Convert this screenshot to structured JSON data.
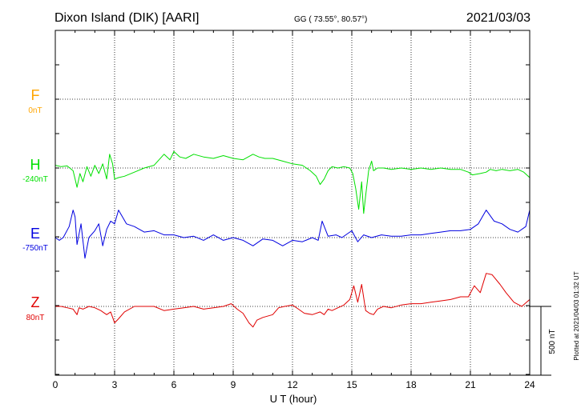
{
  "header": {
    "station": "Dixon Island (DIK)  [AARI]",
    "coords": "GG ( 73.55°,  80.57°)",
    "date": "2021/03/03"
  },
  "side_note": "Plotted at 2021/04/03 01:32 UT",
  "colors": {
    "F": "#ffa500",
    "H": "#00e000",
    "E": "#0000e0",
    "Z": "#e00000",
    "axis": "#000000"
  },
  "chart_data": {
    "type": "line",
    "title": "Dixon Island (DIK)  [AARI]",
    "xlabel": "U T (hour)",
    "xlim": [
      0,
      24
    ],
    "x_ticks": [
      "0",
      "3",
      "6",
      "9",
      "12",
      "15",
      "18",
      "21",
      "24"
    ],
    "grid": true,
    "scale_bar": {
      "label": "500 nT",
      "value_nT": 500
    },
    "series": [
      {
        "name": "F",
        "baseline": "0nT",
        "color": "#ffa500",
        "x": [],
        "y": []
      },
      {
        "name": "H",
        "baseline": "-240nT",
        "color": "#00e000",
        "x": [
          0,
          0.3,
          0.6,
          0.9,
          1.0,
          1.1,
          1.25,
          1.4,
          1.6,
          1.8,
          2.0,
          2.2,
          2.4,
          2.6,
          2.75,
          2.9,
          3.0,
          3.2,
          3.5,
          4.0,
          4.5,
          5.0,
          5.5,
          5.8,
          6.0,
          6.3,
          6.6,
          7.0,
          7.5,
          8.0,
          8.5,
          9.0,
          9.5,
          10.0,
          10.3,
          10.6,
          11.0,
          11.5,
          12.0,
          12.5,
          12.9,
          13.2,
          13.4,
          13.6,
          13.8,
          14.0,
          14.3,
          14.6,
          14.9,
          15.05,
          15.2,
          15.35,
          15.5,
          15.6,
          15.7,
          15.85,
          16.0,
          16.1,
          16.3,
          16.6,
          17.0,
          17.5,
          18.0,
          18.5,
          19.0,
          19.5,
          20.0,
          20.5,
          20.9,
          21.1,
          21.5,
          21.8,
          22.0,
          22.3,
          22.6,
          23.0,
          23.4,
          23.7,
          24.0
        ],
        "y": [
          20,
          10,
          15,
          -20,
          -80,
          -140,
          -40,
          -100,
          10,
          -60,
          20,
          -40,
          30,
          -80,
          100,
          30,
          -80,
          -70,
          -60,
          -30,
          0,
          20,
          100,
          60,
          120,
          80,
          70,
          100,
          80,
          70,
          90,
          70,
          60,
          100,
          80,
          70,
          70,
          50,
          30,
          20,
          -20,
          -60,
          -120,
          -80,
          -20,
          10,
          0,
          10,
          0,
          -40,
          -150,
          -300,
          -100,
          -330,
          -200,
          -20,
          50,
          -20,
          0,
          0,
          -10,
          0,
          -10,
          0,
          -10,
          0,
          -10,
          -10,
          -30,
          -50,
          -40,
          -30,
          -10,
          -20,
          -10,
          -20,
          -10,
          -30,
          -70
        ]
      },
      {
        "name": "E",
        "baseline": "-750nT",
        "color": "#0000e0",
        "x": [
          0,
          0.2,
          0.4,
          0.7,
          0.9,
          1.0,
          1.1,
          1.3,
          1.5,
          1.7,
          2.0,
          2.2,
          2.4,
          2.6,
          2.8,
          3.0,
          3.2,
          3.6,
          4.0,
          4.5,
          5.0,
          5.5,
          6.0,
          6.5,
          7.0,
          7.5,
          8.0,
          8.5,
          9.0,
          9.5,
          10.0,
          10.5,
          11.0,
          11.5,
          12.0,
          12.5,
          13.0,
          13.3,
          13.5,
          13.8,
          14.2,
          14.5,
          15.0,
          15.3,
          15.6,
          16.0,
          16.5,
          17.0,
          17.5,
          18.0,
          18.5,
          19.0,
          19.5,
          20.0,
          20.5,
          21.0,
          21.4,
          21.8,
          22.2,
          22.6,
          23.0,
          23.4,
          23.8,
          24.0
        ],
        "y": [
          0,
          -20,
          0,
          80,
          200,
          150,
          -50,
          100,
          -150,
          0,
          50,
          100,
          -60,
          60,
          120,
          100,
          200,
          100,
          80,
          40,
          50,
          20,
          20,
          0,
          10,
          -20,
          20,
          -20,
          0,
          -20,
          -60,
          -10,
          -20,
          -60,
          -20,
          -30,
          0,
          -20,
          120,
          10,
          20,
          0,
          50,
          -30,
          20,
          0,
          20,
          10,
          10,
          20,
          20,
          30,
          40,
          50,
          50,
          60,
          100,
          200,
          120,
          100,
          60,
          40,
          80,
          200
        ]
      },
      {
        "name": "Z",
        "baseline": "80nT",
        "color": "#e00000",
        "x": [
          0,
          0.3,
          0.6,
          0.9,
          1.1,
          1.2,
          1.4,
          1.7,
          2.0,
          2.3,
          2.6,
          2.8,
          3.0,
          3.2,
          3.5,
          4.0,
          4.5,
          5.0,
          5.5,
          6.0,
          6.5,
          7.0,
          7.5,
          8.0,
          8.5,
          8.9,
          9.2,
          9.5,
          9.8,
          10.0,
          10.2,
          10.5,
          11.0,
          11.3,
          11.6,
          12.0,
          12.3,
          12.6,
          13.0,
          13.4,
          13.6,
          13.8,
          14.0,
          14.3,
          14.6,
          14.9,
          15.1,
          15.3,
          15.5,
          15.7,
          15.9,
          16.1,
          16.3,
          16.6,
          17.0,
          17.5,
          18.0,
          18.5,
          19.0,
          19.5,
          20.0,
          20.5,
          20.9,
          21.2,
          21.5,
          21.8,
          22.1,
          22.5,
          22.8,
          23.2,
          23.6,
          24.0
        ],
        "y": [
          0,
          0,
          -10,
          -20,
          -60,
          -10,
          -20,
          0,
          -10,
          -30,
          -60,
          -40,
          -120,
          -90,
          -40,
          0,
          0,
          0,
          -30,
          -20,
          -10,
          0,
          -20,
          -10,
          0,
          20,
          -20,
          -50,
          -120,
          -150,
          -100,
          -80,
          -60,
          -10,
          0,
          10,
          -20,
          -50,
          -60,
          -40,
          -60,
          -20,
          -30,
          -10,
          10,
          50,
          150,
          30,
          160,
          -30,
          -50,
          -60,
          -20,
          0,
          -10,
          10,
          20,
          20,
          30,
          40,
          50,
          70,
          70,
          150,
          100,
          240,
          230,
          160,
          100,
          30,
          0,
          50
        ]
      }
    ]
  }
}
